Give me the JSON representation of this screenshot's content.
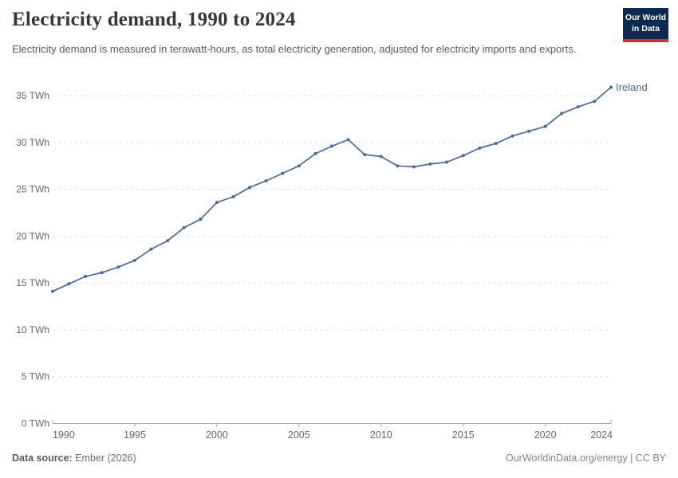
{
  "header": {
    "title": "Electricity demand, 1990 to 2024",
    "subtitle": "Electricity demand is measured in terawatt-hours, as total electricity generation, adjusted for electricity imports and exports.",
    "logo_line1": "Our World",
    "logo_line2": "in Data"
  },
  "footer": {
    "source_label": "Data source:",
    "source_value": "Ember (2026)",
    "credit": "OurWorldinData.org/energy | CC BY"
  },
  "colors": {
    "line": "#4c6a9c",
    "series_label": "#3d5a8f",
    "grid": "#dddddd",
    "axis": "#a5a5a5",
    "tick_text": "#666666",
    "logo_bg": "#0c2950",
    "logo_accent": "#cf2e41"
  },
  "chart_data": {
    "type": "line",
    "title": "Electricity demand, 1990 to 2024",
    "xlabel": "",
    "ylabel": "",
    "unit": "TWh",
    "grid": true,
    "legend_position": "end-of-line",
    "xlim": [
      1990,
      2024
    ],
    "ylim": [
      0,
      36
    ],
    "yticks": [
      0,
      5,
      10,
      15,
      20,
      25,
      30,
      35
    ],
    "xticks": [
      1990,
      1995,
      2000,
      2005,
      2010,
      2015,
      2020,
      2024
    ],
    "x": [
      1990,
      1991,
      1992,
      1993,
      1994,
      1995,
      1996,
      1997,
      1998,
      1999,
      2000,
      2001,
      2002,
      2003,
      2004,
      2005,
      2006,
      2007,
      2008,
      2009,
      2010,
      2011,
      2012,
      2013,
      2014,
      2015,
      2016,
      2017,
      2018,
      2019,
      2020,
      2021,
      2022,
      2023,
      2024
    ],
    "series": [
      {
        "name": "Ireland",
        "values": [
          14.1,
          14.9,
          15.7,
          16.1,
          16.7,
          17.4,
          18.6,
          19.5,
          20.9,
          21.8,
          23.6,
          24.2,
          25.2,
          25.9,
          26.7,
          27.5,
          28.8,
          29.6,
          30.3,
          28.7,
          28.5,
          27.5,
          27.4,
          27.7,
          27.9,
          28.6,
          29.4,
          29.9,
          30.7,
          31.2,
          31.7,
          33.1,
          33.8,
          34.4,
          35.9
        ]
      }
    ]
  }
}
